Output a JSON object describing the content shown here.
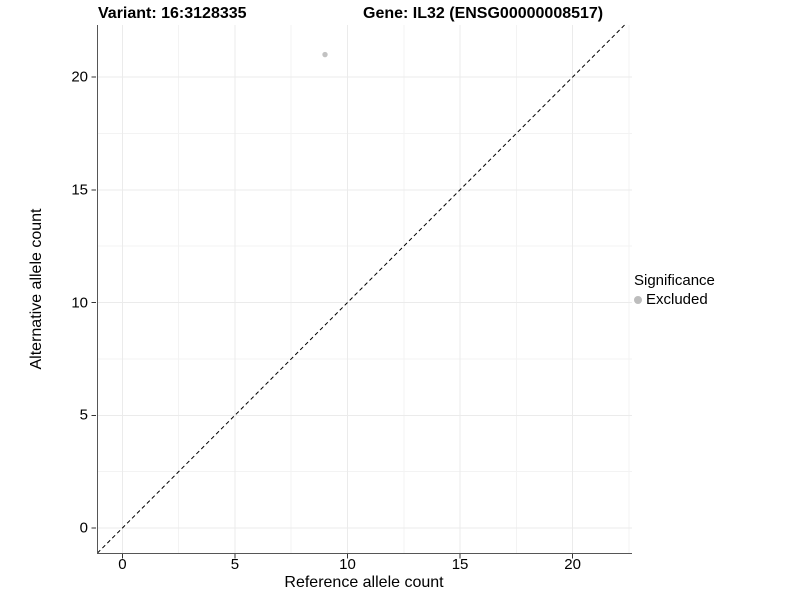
{
  "header": {
    "variant_title": "Variant: 16:3128335",
    "gene_title": "Gene: IL32 (ENSG00000008517)"
  },
  "axes": {
    "x_title": "Reference allele count",
    "y_title": "Alternative allele count"
  },
  "legend": {
    "title": "Significance",
    "items": [
      {
        "label": "Excluded",
        "color": "#bdbdbd"
      }
    ]
  },
  "chart_data": {
    "type": "scatter",
    "title": "Variant: 16:3128335 / Gene: IL32 (ENSG00000008517)",
    "xlabel": "Reference allele count",
    "ylabel": "Alternative allele count",
    "xlim": [
      -1.13,
      22.64
    ],
    "ylim": [
      -1.11,
      22.31
    ],
    "x_ticks": [
      0,
      5,
      10,
      15,
      20
    ],
    "y_ticks": [
      0,
      5,
      10,
      15,
      20
    ],
    "grid": {
      "major": true,
      "minor": true,
      "minor_step": 2.5
    },
    "legend_position": "right",
    "series": [
      {
        "name": "Excluded",
        "color": "#c2c2c2",
        "points": [
          {
            "x": 9,
            "y": 21
          }
        ]
      }
    ],
    "reference_line": {
      "type": "identity y=x",
      "style": "dashed",
      "color": "#000000"
    }
  },
  "style": {
    "axis_line_color": "#565656",
    "tick_color": "#333333",
    "major_grid_color": "#ebebeb",
    "minor_grid_color": "#f3f3f3",
    "background": "#ffffff"
  }
}
